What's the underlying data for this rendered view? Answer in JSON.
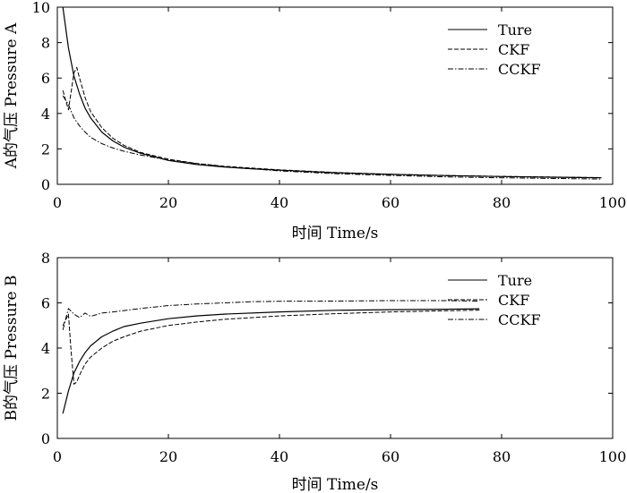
{
  "chart_data": [
    {
      "type": "line",
      "title": "",
      "xlabel": "时间 Time/s",
      "ylabel": "A的气压 Pressure A",
      "xlim": [
        0,
        100
      ],
      "ylim": [
        0,
        10
      ],
      "xticks": [
        "0",
        "20",
        "40",
        "60",
        "80",
        "100"
      ],
      "yticks": [
        "0",
        "2",
        "4",
        "6",
        "8",
        "10"
      ],
      "grid": false,
      "legend_position": "top-right",
      "series": [
        {
          "name": "Ture",
          "style": "solid",
          "x": [
            1,
            2,
            3,
            4,
            5,
            6,
            8,
            10,
            12,
            15,
            20,
            25,
            30,
            35,
            40,
            50,
            60,
            70,
            80,
            90,
            98
          ],
          "y": [
            10.0,
            7.7,
            6.1,
            5.1,
            4.3,
            3.75,
            2.95,
            2.45,
            2.1,
            1.75,
            1.35,
            1.12,
            0.98,
            0.88,
            0.8,
            0.65,
            0.56,
            0.49,
            0.44,
            0.4,
            0.37
          ]
        },
        {
          "name": "CKF",
          "style": "dashed",
          "x": [
            1,
            2,
            3,
            3.5,
            4,
            5,
            6,
            8,
            10,
            12,
            15,
            20,
            25,
            30,
            40,
            50,
            60,
            70,
            80,
            90,
            98
          ],
          "y": [
            5.3,
            4.2,
            6.3,
            6.6,
            6.0,
            4.9,
            4.1,
            3.2,
            2.6,
            2.2,
            1.8,
            1.42,
            1.18,
            1.02,
            0.82,
            0.67,
            0.57,
            0.5,
            0.45,
            0.41,
            0.38
          ]
        },
        {
          "name": "CCKF",
          "style": "dashdot",
          "x": [
            1,
            2,
            3,
            4,
            5,
            6,
            8,
            10,
            12,
            15,
            20,
            25,
            30,
            40,
            50,
            60,
            70,
            80,
            90,
            98
          ],
          "y": [
            5.0,
            4.5,
            3.75,
            3.3,
            2.95,
            2.65,
            2.3,
            2.05,
            1.87,
            1.65,
            1.38,
            1.17,
            1.0,
            0.76,
            0.6,
            0.5,
            0.42,
            0.37,
            0.33,
            0.3
          ]
        }
      ]
    },
    {
      "type": "line",
      "title": "",
      "xlabel": "时间 Time/s",
      "ylabel": "B的气压 Pressure B",
      "xlim": [
        0,
        100
      ],
      "ylim": [
        0,
        8
      ],
      "xticks": [
        "0",
        "20",
        "40",
        "60",
        "80",
        "100"
      ],
      "yticks": [
        "0",
        "2",
        "4",
        "6",
        "8"
      ],
      "grid": false,
      "legend_position": "top-right",
      "series": [
        {
          "name": "Ture",
          "style": "solid",
          "x": [
            1,
            2,
            3,
            4,
            5,
            6,
            8,
            10,
            12,
            15,
            20,
            25,
            30,
            40,
            50,
            60,
            70,
            76
          ],
          "y": [
            1.1,
            2.1,
            2.9,
            3.4,
            3.8,
            4.1,
            4.5,
            4.75,
            4.95,
            5.1,
            5.3,
            5.42,
            5.5,
            5.6,
            5.67,
            5.7,
            5.72,
            5.74
          ]
        },
        {
          "name": "CKF",
          "style": "dashed",
          "x": [
            1,
            2,
            2.5,
            3,
            3.5,
            4,
            5,
            6,
            8,
            10,
            12,
            15,
            20,
            25,
            30,
            40,
            50,
            60,
            70,
            76
          ],
          "y": [
            5.0,
            5.5,
            3.8,
            2.4,
            2.5,
            2.8,
            3.3,
            3.6,
            4.0,
            4.3,
            4.5,
            4.75,
            5.0,
            5.15,
            5.27,
            5.42,
            5.52,
            5.6,
            5.65,
            5.68
          ]
        },
        {
          "name": "CCKF",
          "style": "dashdot",
          "x": [
            1,
            2,
            3,
            4,
            5,
            6,
            8,
            10,
            15,
            20,
            25,
            30,
            35,
            40,
            50,
            60,
            70,
            76
          ],
          "y": [
            4.8,
            5.75,
            5.5,
            5.35,
            5.55,
            5.4,
            5.55,
            5.6,
            5.75,
            5.88,
            5.95,
            6.0,
            6.05,
            6.07,
            6.08,
            6.1,
            6.1,
            6.08
          ]
        }
      ]
    }
  ]
}
